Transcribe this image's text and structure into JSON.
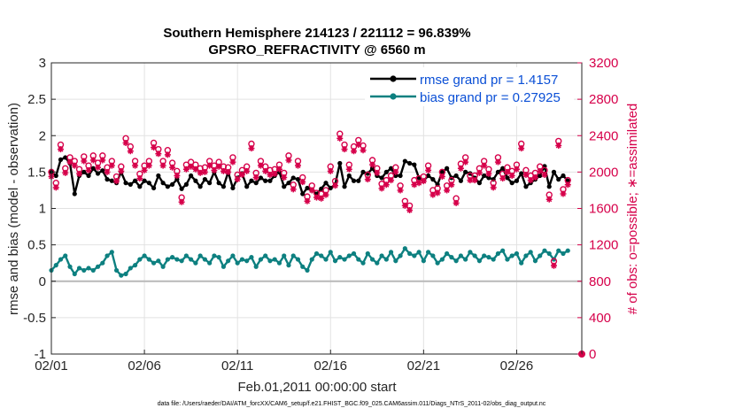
{
  "colors": {
    "rmse": "#000000",
    "bias": "#0d8080",
    "obs": "#d6004a",
    "legend_text": "#0a4fd6",
    "grid": "#e2e2e2",
    "zero_line": "#b9b9b9",
    "axis": "#262626"
  },
  "chart_data": {
    "type": "line",
    "title": "Southern Hemisphere 214123 / 221112 = 96.839%",
    "subtitle": "GPSRO_REFRACTIVITY @ 6560 m",
    "xlabel": "Feb.01,2011 00:00:00 start",
    "ylabel": "rmse and bias (model - observation)",
    "ylabel_right": "# of obs: o=possible; ∗=assimilated",
    "footer": "data file: /Users/raeder/DAI/ATM_forcXX/CAM6_setup/f.e21.FHIST_BGC.f09_025.CAM6assim.011/Diags_NTrS_2011-02/obs_diag_output.nc",
    "xlim": [
      0,
      28.5
    ],
    "ylim": [
      -1,
      3
    ],
    "ylim_right": [
      0,
      3200
    ],
    "grid": true,
    "legend_position": "top-right",
    "x_ticks": [
      {
        "value": 0,
        "label": "02/01"
      },
      {
        "value": 5,
        "label": "02/06"
      },
      {
        "value": 10,
        "label": "02/11"
      },
      {
        "value": 15,
        "label": "02/16"
      },
      {
        "value": 20,
        "label": "02/21"
      },
      {
        "value": 25,
        "label": "02/26"
      }
    ],
    "y_ticks": [
      {
        "value": 3,
        "label": "3"
      },
      {
        "value": 2.5,
        "label": "2.5"
      },
      {
        "value": 2,
        "label": "2"
      },
      {
        "value": 1.5,
        "label": "1.5"
      },
      {
        "value": 1,
        "label": "1"
      },
      {
        "value": 0.5,
        "label": "0.5"
      },
      {
        "value": 0,
        "label": "0"
      },
      {
        "value": -0.5,
        "label": "-0.5"
      },
      {
        "value": -1,
        "label": "-1"
      }
    ],
    "y_ticks_right": [
      {
        "value": 3200,
        "label": "3200"
      },
      {
        "value": 2800,
        "label": "2800"
      },
      {
        "value": 2400,
        "label": "2400"
      },
      {
        "value": 2000,
        "label": "2000"
      },
      {
        "value": 1600,
        "label": "1600"
      },
      {
        "value": 1200,
        "label": "1200"
      },
      {
        "value": 800,
        "label": "800"
      },
      {
        "value": 400,
        "label": "400"
      },
      {
        "value": 0,
        "label": "0"
      }
    ],
    "x": [
      0.0,
      0.25,
      0.5,
      0.75,
      1.0,
      1.25,
      1.5,
      1.75,
      2.0,
      2.25,
      2.5,
      2.75,
      3.0,
      3.25,
      3.5,
      3.75,
      4.0,
      4.25,
      4.5,
      4.75,
      5.0,
      5.25,
      5.5,
      5.75,
      6.0,
      6.25,
      6.5,
      6.75,
      7.0,
      7.25,
      7.5,
      7.75,
      8.0,
      8.25,
      8.5,
      8.75,
      9.0,
      9.25,
      9.5,
      9.75,
      10.0,
      10.25,
      10.5,
      10.75,
      11.0,
      11.25,
      11.5,
      11.75,
      12.0,
      12.25,
      12.5,
      12.75,
      13.0,
      13.25,
      13.5,
      13.75,
      14.0,
      14.25,
      14.5,
      14.75,
      15.0,
      15.25,
      15.5,
      15.75,
      16.0,
      16.25,
      16.5,
      16.75,
      17.0,
      17.25,
      17.5,
      17.75,
      18.0,
      18.25,
      18.5,
      18.75,
      19.0,
      19.25,
      19.5,
      19.75,
      20.0,
      20.25,
      20.5,
      20.75,
      21.0,
      21.25,
      21.5,
      21.75,
      22.0,
      22.25,
      22.5,
      22.75,
      23.0,
      23.25,
      23.5,
      23.75,
      24.0,
      24.25,
      24.5,
      24.75,
      25.0,
      25.25,
      25.5,
      25.75,
      26.0,
      26.25,
      26.5,
      26.75,
      27.0,
      27.25,
      27.5,
      27.75
    ],
    "series": [
      {
        "name": "rmse grand pr = 1.4157",
        "axis": "left",
        "marker": "dot",
        "values": [
          1.5,
          1.45,
          1.67,
          1.7,
          1.62,
          1.2,
          1.45,
          1.5,
          1.45,
          1.55,
          1.48,
          1.52,
          1.4,
          1.38,
          1.35,
          1.5,
          1.35,
          1.33,
          1.38,
          1.3,
          1.38,
          1.35,
          1.28,
          1.45,
          1.35,
          1.3,
          1.33,
          1.4,
          1.27,
          1.33,
          1.45,
          1.38,
          1.3,
          1.4,
          1.35,
          1.5,
          1.35,
          1.3,
          1.5,
          1.28,
          1.42,
          1.48,
          1.3,
          1.38,
          1.35,
          1.42,
          1.38,
          1.38,
          1.45,
          1.5,
          1.3,
          1.35,
          1.42,
          1.4,
          1.2,
          1.28,
          1.25,
          1.2,
          1.27,
          1.35,
          1.28,
          1.33,
          1.62,
          1.3,
          1.45,
          1.38,
          1.38,
          1.5,
          1.48,
          1.55,
          1.45,
          1.42,
          1.5,
          1.55,
          1.45,
          1.45,
          1.65,
          1.62,
          1.6,
          1.42,
          1.38,
          1.45,
          1.4,
          1.33,
          1.5,
          1.55,
          1.42,
          1.45,
          1.38,
          1.5,
          1.48,
          1.42,
          1.35,
          1.45,
          1.42,
          1.4,
          1.5,
          1.55,
          1.42,
          1.35,
          1.38,
          1.48,
          1.3,
          1.35,
          1.4,
          1.45,
          1.58,
          1.3,
          1.5,
          1.4,
          1.45,
          1.38
        ]
      },
      {
        "name": "bias grand pr = 0.27925",
        "axis": "left",
        "marker": "dot",
        "values": [
          0.15,
          0.22,
          0.3,
          0.35,
          0.2,
          0.1,
          0.18,
          0.15,
          0.18,
          0.15,
          0.2,
          0.25,
          0.35,
          0.4,
          0.15,
          0.08,
          0.1,
          0.18,
          0.22,
          0.3,
          0.35,
          0.3,
          0.25,
          0.28,
          0.2,
          0.3,
          0.33,
          0.3,
          0.28,
          0.35,
          0.3,
          0.25,
          0.35,
          0.3,
          0.25,
          0.35,
          0.33,
          0.2,
          0.28,
          0.35,
          0.25,
          0.3,
          0.28,
          0.33,
          0.2,
          0.3,
          0.35,
          0.28,
          0.3,
          0.25,
          0.35,
          0.22,
          0.35,
          0.3,
          0.2,
          0.15,
          0.3,
          0.38,
          0.35,
          0.3,
          0.4,
          0.28,
          0.33,
          0.3,
          0.35,
          0.38,
          0.3,
          0.25,
          0.38,
          0.3,
          0.25,
          0.35,
          0.3,
          0.4,
          0.28,
          0.35,
          0.45,
          0.38,
          0.35,
          0.4,
          0.28,
          0.4,
          0.35,
          0.25,
          0.3,
          0.38,
          0.33,
          0.28,
          0.35,
          0.3,
          0.4,
          0.35,
          0.28,
          0.35,
          0.33,
          0.3,
          0.38,
          0.42,
          0.3,
          0.35,
          0.38,
          0.25,
          0.35,
          0.4,
          0.28,
          0.35,
          0.42,
          0.38,
          0.3,
          0.42,
          0.38,
          0.42
        ]
      },
      {
        "name": "possible",
        "axis": "right",
        "marker": "circle",
        "values": [
          2000,
          1880,
          2300,
          2040,
          2160,
          2120,
          2030,
          2170,
          2070,
          2180,
          2100,
          2180,
          2050,
          2120,
          1950,
          2060,
          2370,
          2280,
          2120,
          1980,
          2070,
          2120,
          2320,
          2250,
          2120,
          2240,
          2100,
          2010,
          1720,
          2080,
          2110,
          2080,
          2040,
          2050,
          2120,
          2070,
          2110,
          2060,
          2050,
          2160,
          1970,
          2020,
          2060,
          2310,
          1990,
          2120,
          2060,
          2020,
          2030,
          2080,
          1990,
          2180,
          1860,
          2120,
          1940,
          1730,
          1850,
          1770,
          1760,
          1800,
          2060,
          1900,
          2420,
          2300,
          2080,
          2280,
          2350,
          2290,
          1970,
          2130,
          2040,
          1870,
          1910,
          1960,
          2050,
          1850,
          1680,
          1630,
          1910,
          1930,
          1950,
          2070,
          1800,
          1820,
          2000,
          1850,
          1910,
          1710,
          2090,
          2160,
          1960,
          1960,
          2040,
          2120,
          2030,
          1880,
          2160,
          1980,
          2050,
          2010,
          2080,
          2310,
          2020,
          1960,
          1990,
          2060,
          2020,
          1750,
          1020,
          2340,
          1810,
          1910
        ]
      },
      {
        "name": "assimilated",
        "axis": "right",
        "marker": "star",
        "values": [
          1950,
          1830,
          2250,
          1990,
          2110,
          2070,
          1980,
          2120,
          2020,
          2130,
          2050,
          2130,
          2000,
          2070,
          1900,
          2010,
          2320,
          2230,
          2070,
          1930,
          2020,
          2070,
          2270,
          2200,
          2070,
          2190,
          2050,
          1960,
          1670,
          2030,
          2060,
          2030,
          1990,
          2000,
          2070,
          2020,
          2060,
          2010,
          2000,
          2110,
          1920,
          1970,
          2010,
          2260,
          1940,
          2070,
          2010,
          1970,
          1980,
          2030,
          1940,
          2130,
          1810,
          2070,
          1890,
          1680,
          1800,
          1720,
          1710,
          1750,
          2010,
          1850,
          2370,
          2250,
          2030,
          2230,
          2300,
          2240,
          1920,
          2080,
          1990,
          1820,
          1860,
          1910,
          2000,
          1800,
          1630,
          1580,
          1860,
          1880,
          1900,
          2020,
          1750,
          1770,
          1950,
          1800,
          1860,
          1660,
          2040,
          2110,
          1910,
          1910,
          1990,
          2070,
          1980,
          1830,
          2110,
          1930,
          2000,
          1960,
          2030,
          2260,
          1970,
          1910,
          1940,
          2010,
          1970,
          1700,
          970,
          2290,
          1760,
          1860
        ]
      }
    ]
  }
}
